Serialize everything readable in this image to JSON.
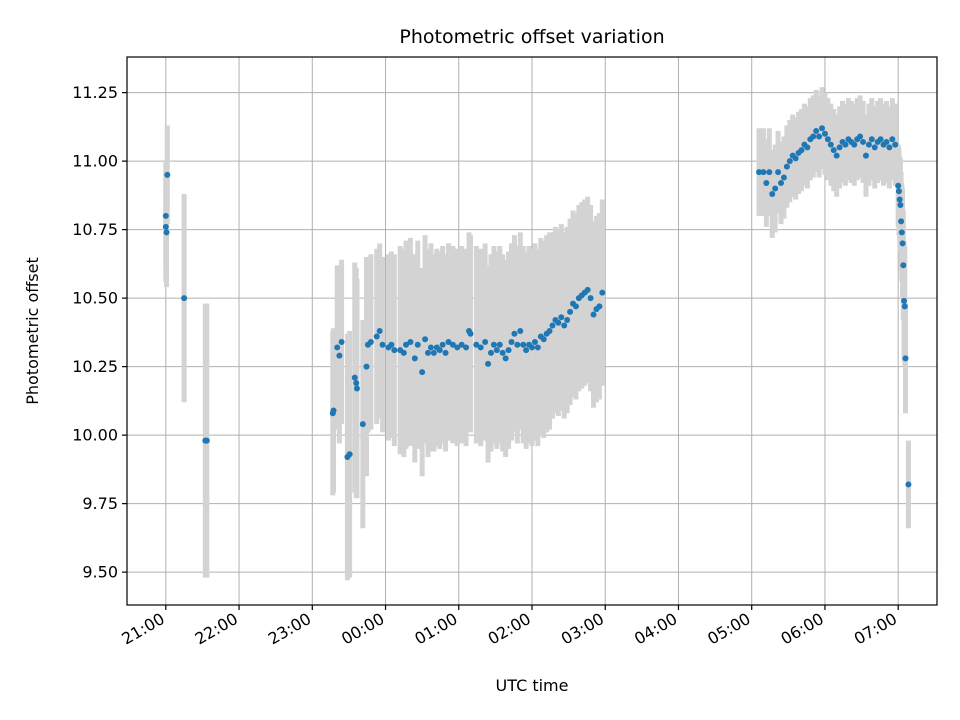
{
  "chart_data": {
    "type": "scatter",
    "title": "Photometric offset variation",
    "xlabel": "UTC time",
    "ylabel": "Photometric offset",
    "x_unit": "hours since 21:00 UTC",
    "xlim": [
      -0.53,
      10.53
    ],
    "ylim": [
      9.38,
      11.38
    ],
    "x_ticks": [
      {
        "x": 0,
        "label": "21:00"
      },
      {
        "x": 1,
        "label": "22:00"
      },
      {
        "x": 2,
        "label": "23:00"
      },
      {
        "x": 3,
        "label": "00:00"
      },
      {
        "x": 4,
        "label": "01:00"
      },
      {
        "x": 5,
        "label": "02:00"
      },
      {
        "x": 6,
        "label": "03:00"
      },
      {
        "x": 7,
        "label": "04:00"
      },
      {
        "x": 8,
        "label": "05:00"
      },
      {
        "x": 9,
        "label": "06:00"
      },
      {
        "x": 10,
        "label": "07:00"
      }
    ],
    "y_ticks": [
      {
        "y": 9.5,
        "label": "9.50"
      },
      {
        "y": 9.75,
        "label": "9.75"
      },
      {
        "y": 10.0,
        "label": "10.00"
      },
      {
        "y": 10.25,
        "label": "10.25"
      },
      {
        "y": 10.5,
        "label": "10.50"
      },
      {
        "y": 10.75,
        "label": "10.75"
      },
      {
        "y": 11.0,
        "label": "11.00"
      },
      {
        "y": 11.25,
        "label": "11.25"
      }
    ],
    "grid": true,
    "colors": {
      "points": "#1f77b4",
      "errorbars": "#d3d3d3",
      "grid": "#b0b0b0"
    },
    "series": [
      {
        "points": [
          [
            0.0,
            10.8,
            0.2
          ],
          [
            0.0,
            10.76,
            0.2
          ],
          [
            0.01,
            10.74,
            0.2
          ],
          [
            0.02,
            10.95,
            0.18
          ],
          [
            0.25,
            10.5,
            0.38
          ],
          [
            0.54,
            9.98,
            0.5
          ],
          [
            0.56,
            9.98,
            0.5
          ],
          [
            2.28,
            10.08,
            0.3
          ],
          [
            2.29,
            10.09,
            0.3
          ],
          [
            2.34,
            10.32,
            0.3
          ],
          [
            2.37,
            10.29,
            0.32
          ],
          [
            2.4,
            10.34,
            0.3
          ],
          [
            2.48,
            9.92,
            0.45
          ],
          [
            2.51,
            9.93,
            0.45
          ],
          [
            2.58,
            10.21,
            0.42
          ],
          [
            2.6,
            10.19,
            0.42
          ],
          [
            2.61,
            10.17,
            0.4
          ],
          [
            2.69,
            10.04,
            0.38
          ],
          [
            2.74,
            10.25,
            0.4
          ],
          [
            2.76,
            10.33,
            0.32
          ],
          [
            2.8,
            10.34,
            0.32
          ],
          [
            2.88,
            10.36,
            0.32
          ],
          [
            2.92,
            10.38,
            0.32
          ],
          [
            2.96,
            10.33,
            0.32
          ],
          [
            3.04,
            10.32,
            0.34
          ],
          [
            3.08,
            10.33,
            0.34
          ],
          [
            3.12,
            10.31,
            0.35
          ],
          [
            3.2,
            10.31,
            0.38
          ],
          [
            3.25,
            10.3,
            0.38
          ],
          [
            3.28,
            10.33,
            0.38
          ],
          [
            3.34,
            10.34,
            0.38
          ],
          [
            3.4,
            10.28,
            0.38
          ],
          [
            3.44,
            10.33,
            0.38
          ],
          [
            3.5,
            10.23,
            0.38
          ],
          [
            3.54,
            10.35,
            0.38
          ],
          [
            3.58,
            10.3,
            0.38
          ],
          [
            3.62,
            10.32,
            0.38
          ],
          [
            3.66,
            10.3,
            0.36
          ],
          [
            3.7,
            10.32,
            0.36
          ],
          [
            3.74,
            10.31,
            0.36
          ],
          [
            3.78,
            10.33,
            0.36
          ],
          [
            3.82,
            10.3,
            0.36
          ],
          [
            3.86,
            10.34,
            0.36
          ],
          [
            3.92,
            10.33,
            0.36
          ],
          [
            3.98,
            10.32,
            0.36
          ],
          [
            4.04,
            10.33,
            0.36
          ],
          [
            4.1,
            10.32,
            0.36
          ],
          [
            4.14,
            10.38,
            0.36
          ],
          [
            4.16,
            10.37,
            0.36
          ],
          [
            4.24,
            10.33,
            0.36
          ],
          [
            4.3,
            10.32,
            0.36
          ],
          [
            4.36,
            10.34,
            0.36
          ],
          [
            4.4,
            10.26,
            0.36
          ],
          [
            4.44,
            10.3,
            0.36
          ],
          [
            4.48,
            10.33,
            0.36
          ],
          [
            4.52,
            10.31,
            0.36
          ],
          [
            4.56,
            10.33,
            0.36
          ],
          [
            4.6,
            10.3,
            0.36
          ],
          [
            4.64,
            10.28,
            0.36
          ],
          [
            4.68,
            10.31,
            0.36
          ],
          [
            4.72,
            10.34,
            0.36
          ],
          [
            4.76,
            10.37,
            0.36
          ],
          [
            4.8,
            10.33,
            0.36
          ],
          [
            4.84,
            10.38,
            0.36
          ],
          [
            4.88,
            10.33,
            0.36
          ],
          [
            4.92,
            10.31,
            0.36
          ],
          [
            4.96,
            10.33,
            0.36
          ],
          [
            5.0,
            10.32,
            0.36
          ],
          [
            5.04,
            10.34,
            0.36
          ],
          [
            5.08,
            10.32,
            0.36
          ],
          [
            5.12,
            10.36,
            0.36
          ],
          [
            5.16,
            10.35,
            0.36
          ],
          [
            5.2,
            10.37,
            0.36
          ],
          [
            5.24,
            10.38,
            0.36
          ],
          [
            5.28,
            10.4,
            0.34
          ],
          [
            5.32,
            10.42,
            0.34
          ],
          [
            5.36,
            10.41,
            0.34
          ],
          [
            5.4,
            10.43,
            0.34
          ],
          [
            5.44,
            10.4,
            0.34
          ],
          [
            5.48,
            10.42,
            0.34
          ],
          [
            5.52,
            10.45,
            0.34
          ],
          [
            5.56,
            10.48,
            0.34
          ],
          [
            5.6,
            10.47,
            0.34
          ],
          [
            5.64,
            10.5,
            0.34
          ],
          [
            5.68,
            10.51,
            0.34
          ],
          [
            5.72,
            10.52,
            0.34
          ],
          [
            5.76,
            10.53,
            0.34
          ],
          [
            5.8,
            10.5,
            0.34
          ],
          [
            5.84,
            10.44,
            0.34
          ],
          [
            5.88,
            10.46,
            0.34
          ],
          [
            5.92,
            10.47,
            0.34
          ],
          [
            5.96,
            10.52,
            0.34
          ],
          [
            8.1,
            10.96,
            0.16
          ],
          [
            8.16,
            10.96,
            0.16
          ],
          [
            8.2,
            10.92,
            0.16
          ],
          [
            8.24,
            10.96,
            0.16
          ],
          [
            8.28,
            10.88,
            0.16
          ],
          [
            8.32,
            10.9,
            0.16
          ],
          [
            8.36,
            10.96,
            0.15
          ],
          [
            8.4,
            10.92,
            0.15
          ],
          [
            8.44,
            10.94,
            0.15
          ],
          [
            8.48,
            10.98,
            0.15
          ],
          [
            8.52,
            11.0,
            0.15
          ],
          [
            8.56,
            11.02,
            0.15
          ],
          [
            8.6,
            11.01,
            0.15
          ],
          [
            8.64,
            11.03,
            0.15
          ],
          [
            8.68,
            11.04,
            0.15
          ],
          [
            8.72,
            11.06,
            0.15
          ],
          [
            8.76,
            11.05,
            0.15
          ],
          [
            8.8,
            11.08,
            0.15
          ],
          [
            8.84,
            11.09,
            0.15
          ],
          [
            8.88,
            11.11,
            0.15
          ],
          [
            8.92,
            11.09,
            0.15
          ],
          [
            8.96,
            11.12,
            0.15
          ],
          [
            9.0,
            11.1,
            0.15
          ],
          [
            9.04,
            11.08,
            0.15
          ],
          [
            9.08,
            11.06,
            0.15
          ],
          [
            9.12,
            11.04,
            0.15
          ],
          [
            9.16,
            11.02,
            0.15
          ],
          [
            9.2,
            11.05,
            0.15
          ],
          [
            9.24,
            11.07,
            0.15
          ],
          [
            9.28,
            11.06,
            0.15
          ],
          [
            9.32,
            11.08,
            0.15
          ],
          [
            9.36,
            11.07,
            0.15
          ],
          [
            9.4,
            11.06,
            0.15
          ],
          [
            9.44,
            11.08,
            0.15
          ],
          [
            9.48,
            11.09,
            0.15
          ],
          [
            9.52,
            11.07,
            0.15
          ],
          [
            9.56,
            11.02,
            0.15
          ],
          [
            9.6,
            11.06,
            0.15
          ],
          [
            9.64,
            11.08,
            0.15
          ],
          [
            9.68,
            11.05,
            0.15
          ],
          [
            9.72,
            11.07,
            0.15
          ],
          [
            9.76,
            11.08,
            0.15
          ],
          [
            9.8,
            11.06,
            0.15
          ],
          [
            9.84,
            11.07,
            0.15
          ],
          [
            9.88,
            11.05,
            0.15
          ],
          [
            9.92,
            11.08,
            0.15
          ],
          [
            9.96,
            11.06,
            0.15
          ],
          [
            10.0,
            10.91,
            0.15
          ],
          [
            10.01,
            10.89,
            0.16
          ],
          [
            10.02,
            10.86,
            0.16
          ],
          [
            10.03,
            10.84,
            0.17
          ],
          [
            10.04,
            10.78,
            0.18
          ],
          [
            10.05,
            10.74,
            0.18
          ],
          [
            10.06,
            10.7,
            0.2
          ],
          [
            10.07,
            10.62,
            0.2
          ],
          [
            10.08,
            10.49,
            0.22
          ],
          [
            10.09,
            10.47,
            0.22
          ],
          [
            10.1,
            10.28,
            0.2
          ],
          [
            10.14,
            9.82,
            0.16
          ]
        ]
      }
    ]
  }
}
